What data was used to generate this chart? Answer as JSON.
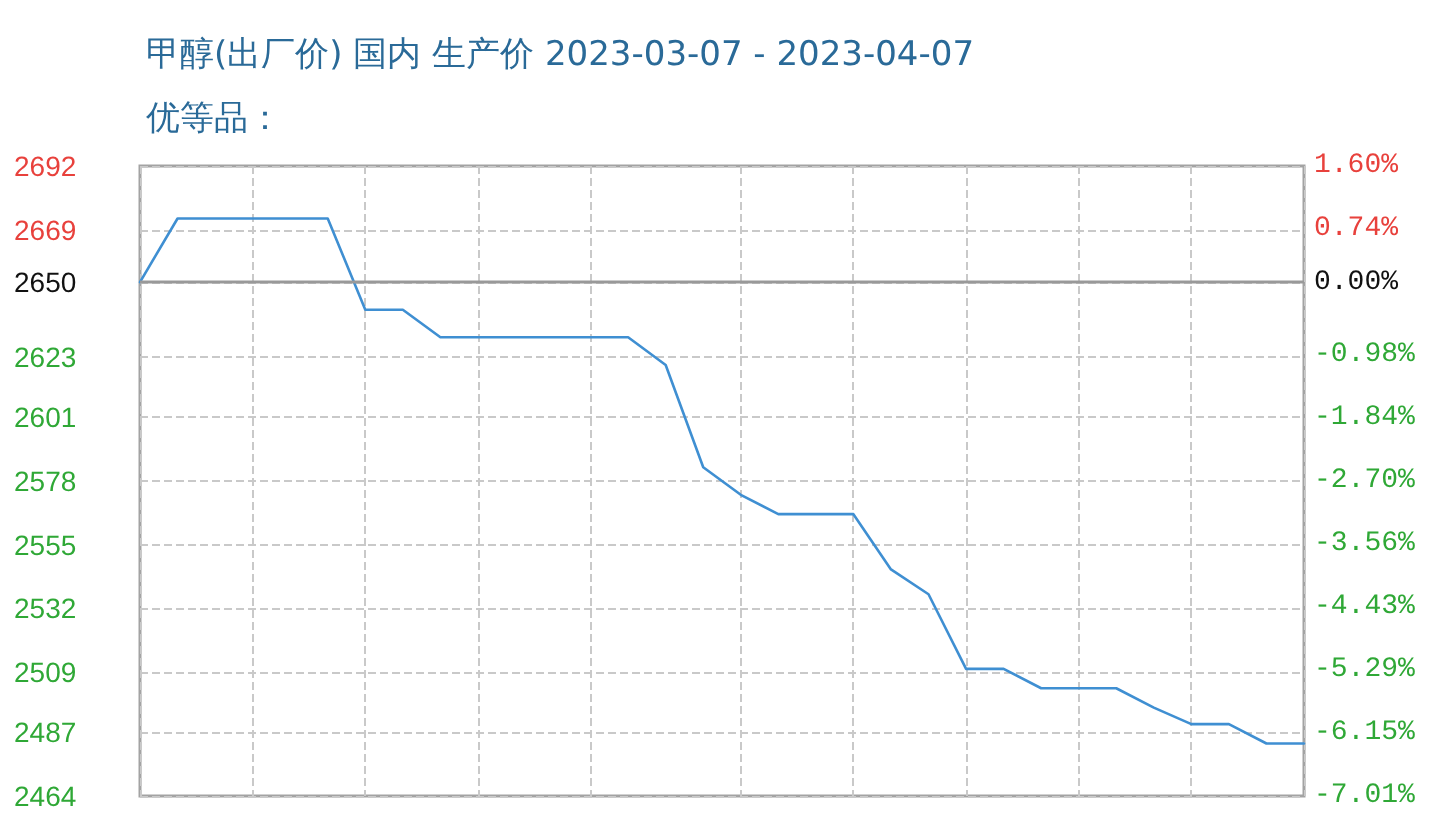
{
  "chart_data": {
    "type": "line",
    "title": "甲醇(出厂价) 国内 生产价 2023-03-07 - 2023-04-07",
    "subtitle": "优等品：",
    "categories": [
      null,
      null,
      null,
      null,
      null,
      null,
      null,
      null,
      null,
      null,
      null,
      null,
      null,
      null,
      null,
      null,
      null,
      null,
      null,
      null,
      null,
      null,
      null,
      null,
      null,
      null,
      null,
      null,
      null,
      null,
      null,
      null
    ],
    "values": [
      2650,
      2673,
      2673,
      2673,
      2673,
      2673,
      2640,
      2640,
      2630,
      2630,
      2630,
      2630,
      2630,
      2630,
      2620,
      2583,
      2573,
      2566,
      2566,
      2566,
      2546,
      2537,
      2510,
      2510,
      2503,
      2503,
      2503,
      2496,
      2490,
      2490,
      2483,
      2483
    ],
    "color": "#3f8fd2",
    "ylim": [
      2464,
      2692
    ],
    "yticks": [
      2464,
      2487,
      2509,
      2532,
      2555,
      2578,
      2601,
      2623,
      2650,
      2669,
      2692
    ],
    "y2lim": [
      -7.01,
      1.6
    ],
    "y2ticks": [
      {
        "value": -7.01,
        "label": "-7.01%"
      },
      {
        "value": -6.15,
        "label": "-6.15%"
      },
      {
        "value": -5.29,
        "label": "-5.29%"
      },
      {
        "value": -4.43,
        "label": "-4.43%"
      },
      {
        "value": -3.56,
        "label": "-3.56%"
      },
      {
        "value": -2.7,
        "label": "-2.70%"
      },
      {
        "value": -1.84,
        "label": "-1.84%"
      },
      {
        "value": -0.98,
        "label": "-0.98%"
      },
      {
        "value": 0,
        "label": "0.00%"
      },
      {
        "value": 0.74,
        "label": "0.74%"
      },
      {
        "value": 1.6,
        "label": "1.60%"
      }
    ],
    "ref_lines": [
      {
        "axis": "y",
        "value": 2650,
        "color": "#999999",
        "line_style": "solid"
      }
    ],
    "grid": true
  }
}
